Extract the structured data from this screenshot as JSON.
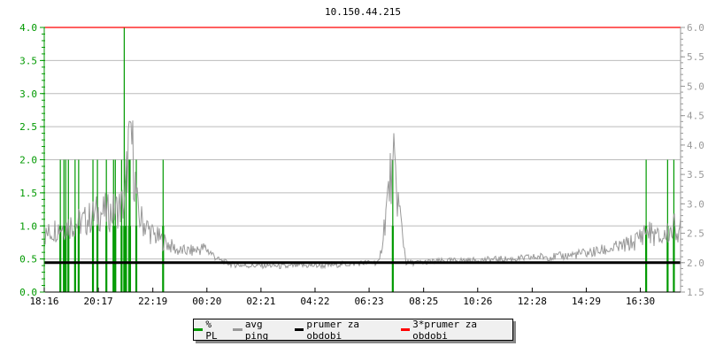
{
  "title": "10.150.44.215",
  "colors": {
    "pl": "#009900",
    "ping": "#999999",
    "avg": "#000000",
    "avg3": "#ff0000",
    "grid": "#bbbbbb"
  },
  "legend": [
    {
      "label": "% PL",
      "color": "#009900"
    },
    {
      "label": "avg ping",
      "color": "#999999"
    },
    {
      "label": "prumer za obdobi",
      "color": "#000000"
    },
    {
      "label": "3*prumer za obdobi",
      "color": "#ff0000"
    }
  ],
  "chart_data": {
    "type": "line",
    "title": "10.150.44.215",
    "grid": true,
    "legend_position": "bottom",
    "xlim": [
      "18:16",
      "18:00"
    ],
    "x_tick_labels": [
      "18:16",
      "20:17",
      "22:19",
      "00:20",
      "02:21",
      "04:22",
      "06:23",
      "08:25",
      "10:26",
      "12:28",
      "14:29",
      "16:30"
    ],
    "y_left": {
      "lim": [
        0,
        4
      ],
      "tick_labels": [
        "0.0",
        "0.5",
        "1.0",
        "1.5",
        "2.0",
        "2.5",
        "3.0",
        "3.5",
        "4.0"
      ],
      "color": "#009900"
    },
    "y_right": {
      "lim": [
        1.5,
        6.0
      ],
      "tick_labels": [
        "1.5",
        "2.0",
        "2.5",
        "3.0",
        "3.5",
        "4.0",
        "4.5",
        "5.0",
        "5.5",
        "6.0"
      ],
      "color": "#999999"
    },
    "series": [
      {
        "name": "% PL",
        "axis": "left",
        "kind": "impulse",
        "x": [
          "18:52",
          "19:00",
          "19:04",
          "19:10",
          "19:25",
          "19:33",
          "20:05",
          "20:15",
          "20:35",
          "20:51",
          "20:55",
          "21:09",
          "21:15",
          "21:19",
          "21:26",
          "21:28",
          "21:42",
          "22:42",
          "07:16",
          "16:43",
          "17:31",
          "17:45"
        ],
        "y": [
          2,
          2,
          2,
          2,
          2,
          2,
          2,
          2,
          2,
          2,
          2,
          2,
          4,
          2,
          2,
          2,
          2,
          2,
          2,
          2,
          2,
          2
        ]
      },
      {
        "name": "avg ping",
        "axis": "right",
        "kind": "line",
        "x": [
          "18:16",
          "18:46",
          "19:16",
          "19:46",
          "20:16",
          "20:46",
          "21:16",
          "21:28",
          "21:46",
          "22:16",
          "22:46",
          "23:16",
          "23:46",
          "00:16",
          "00:46",
          "01:16",
          "01:46",
          "02:16",
          "02:46",
          "03:16",
          "03:46",
          "04:16",
          "04:46",
          "05:16",
          "05:46",
          "06:16",
          "06:46",
          "07:16",
          "07:46",
          "08:16",
          "08:46",
          "09:16",
          "09:46",
          "10:16",
          "10:46",
          "11:16",
          "11:46",
          "12:16",
          "12:46",
          "13:16",
          "13:46",
          "14:16",
          "14:46",
          "15:16",
          "15:46",
          "16:16",
          "16:43",
          "17:16",
          "17:46",
          "18:00"
        ],
        "y": [
          2.45,
          2.6,
          2.65,
          2.7,
          2.85,
          2.85,
          3.0,
          4.4,
          2.8,
          2.5,
          2.35,
          2.2,
          2.2,
          2.25,
          2.05,
          1.97,
          1.95,
          1.95,
          1.95,
          1.93,
          1.95,
          1.95,
          1.95,
          1.97,
          1.98,
          2.0,
          2.0,
          3.75,
          2.0,
          2.0,
          2.02,
          2.03,
          2.04,
          2.04,
          2.05,
          2.06,
          2.06,
          2.08,
          2.1,
          2.1,
          2.12,
          2.15,
          2.18,
          2.22,
          2.27,
          2.35,
          2.55,
          2.4,
          2.6,
          2.55
        ]
      },
      {
        "name": "prumer za obdobi",
        "axis": "right",
        "kind": "hline",
        "y": 2.0
      },
      {
        "name": "3*prumer za obdobi",
        "axis": "right",
        "kind": "hline",
        "y": 6.0
      }
    ]
  }
}
